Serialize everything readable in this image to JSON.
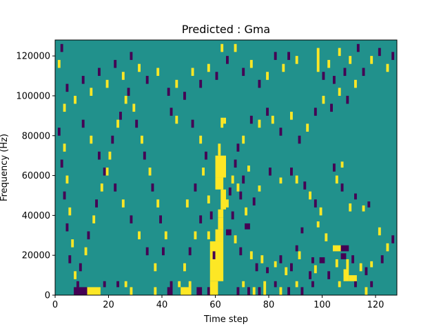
{
  "chart_data": {
    "type": "heatmap",
    "title": "Predicted : Gma",
    "xlabel": "Time step",
    "ylabel": "Frequency (Hz)",
    "xlim": [
      0,
      128
    ],
    "ylim": [
      0,
      128000
    ],
    "grid": false,
    "x_ticks": [
      0,
      20,
      40,
      60,
      80,
      100,
      120
    ],
    "y_ticks": [
      0,
      20000,
      40000,
      60000,
      80000,
      100000,
      120000
    ],
    "x_tick_labels": [
      "0",
      "20",
      "40",
      "60",
      "80",
      "100",
      "120"
    ],
    "y_tick_labels": [
      "0",
      "20000",
      "40000",
      "60000",
      "80000",
      "100000",
      "120000"
    ],
    "background_level": 0,
    "colors": {
      "-1": "#440154",
      "0": "#21918c",
      "1": "#fde725"
    },
    "cells": [
      [
        7,
        0,
        12,
        4000,
        -1
      ],
      [
        12,
        0,
        17,
        4000,
        1
      ],
      [
        8,
        4000,
        9,
        7000,
        -1
      ],
      [
        18,
        4000,
        19,
        7000,
        -1
      ],
      [
        42,
        0,
        43,
        4000,
        -1
      ],
      [
        43,
        0,
        44,
        7000,
        -1
      ],
      [
        47,
        0,
        51,
        4000,
        1
      ],
      [
        50,
        4000,
        51,
        7000,
        1
      ],
      [
        53,
        0,
        55,
        4000,
        -1
      ],
      [
        57,
        0,
        58,
        4000,
        -1
      ],
      [
        58,
        0,
        61,
        7000,
        1
      ],
      [
        46,
        4000,
        47,
        7000,
        1
      ],
      [
        37,
        0,
        38,
        4000,
        1
      ],
      [
        28,
        0,
        29,
        4000,
        1
      ],
      [
        26,
        4000,
        27,
        7000,
        1
      ],
      [
        23,
        4000,
        24,
        7000,
        -1
      ],
      [
        58,
        7000,
        63,
        27000,
        1
      ],
      [
        60,
        27000,
        63,
        33000,
        1
      ],
      [
        61,
        33000,
        63,
        39000,
        1
      ],
      [
        61,
        39000,
        63,
        43000,
        1
      ],
      [
        62,
        43000,
        64,
        53000,
        1
      ],
      [
        60,
        53000,
        63,
        59000,
        1
      ],
      [
        60,
        59000,
        64,
        70000,
        1
      ],
      [
        61,
        70000,
        62,
        76000,
        1
      ],
      [
        62,
        84000,
        63,
        89000,
        1
      ],
      [
        63,
        86000,
        64,
        89000,
        1
      ],
      [
        68,
        0,
        69,
        4000,
        -1
      ],
      [
        70,
        4000,
        71,
        7000,
        1
      ],
      [
        72,
        0,
        73,
        4000,
        -1
      ],
      [
        74,
        0,
        75,
        4000,
        1
      ],
      [
        76,
        0,
        77,
        4000,
        -1
      ],
      [
        78,
        0,
        79,
        7000,
        1
      ],
      [
        82,
        4000,
        83,
        7000,
        -1
      ],
      [
        84,
        0,
        85,
        4000,
        1
      ],
      [
        87,
        0,
        88,
        4000,
        -1
      ],
      [
        90,
        4000,
        91,
        7000,
        1
      ],
      [
        92,
        0,
        93,
        4000,
        -1
      ],
      [
        96,
        4000,
        97,
        7000,
        -1
      ],
      [
        106,
        4000,
        107,
        7000,
        1
      ],
      [
        112,
        4000,
        113,
        7000,
        -1
      ],
      [
        116,
        0,
        117,
        4000,
        1
      ],
      [
        118,
        4000,
        119,
        7000,
        -1
      ],
      [
        108,
        7000,
        110,
        13000,
        1
      ],
      [
        109,
        13000,
        110,
        18000,
        1
      ],
      [
        110,
        7000,
        113,
        10000,
        1
      ],
      [
        107,
        18000,
        109,
        21000,
        -1
      ],
      [
        104,
        22000,
        107,
        25000,
        1
      ],
      [
        107,
        22000,
        110,
        25000,
        -1
      ],
      [
        99,
        16000,
        101,
        19000,
        -1
      ],
      [
        96,
        16000,
        97,
        19000,
        -1
      ],
      [
        90,
        22000,
        91,
        25000,
        -1
      ],
      [
        101,
        27000,
        102,
        31000,
        1
      ],
      [
        92,
        31000,
        93,
        34000,
        -1
      ],
      [
        98,
        34000,
        99,
        37000,
        1
      ],
      [
        71,
        33000,
        73,
        36000,
        -1
      ],
      [
        66,
        38000,
        67,
        42000,
        -1
      ],
      [
        64,
        30000,
        66,
        33000,
        -1
      ],
      [
        67,
        26000,
        68,
        30000,
        1
      ],
      [
        69,
        20000,
        70,
        24000,
        -1
      ],
      [
        73,
        18000,
        74,
        22000,
        1
      ],
      [
        75,
        12000,
        76,
        16000,
        -1
      ],
      [
        77,
        16000,
        78,
        20000,
        1
      ],
      [
        79,
        11000,
        80,
        14000,
        -1
      ],
      [
        82,
        14000,
        83,
        17000,
        1
      ],
      [
        84,
        16000,
        85,
        20000,
        -1
      ],
      [
        86,
        10000,
        87,
        14000,
        1
      ],
      [
        88,
        12000,
        89,
        16000,
        -1
      ],
      [
        91,
        18000,
        92,
        22000,
        1
      ],
      [
        95,
        8000,
        96,
        12000,
        -1
      ],
      [
        97,
        11000,
        98,
        15000,
        1
      ],
      [
        102,
        8000,
        103,
        12000,
        -1
      ],
      [
        105,
        14000,
        106,
        18000,
        1
      ],
      [
        111,
        16000,
        112,
        20000,
        -1
      ],
      [
        114,
        12000,
        115,
        16000,
        1
      ],
      [
        116,
        10000,
        117,
        14000,
        -1
      ],
      [
        118,
        14000,
        119,
        17000,
        1
      ],
      [
        122,
        16000,
        123,
        20000,
        -1
      ],
      [
        124,
        22000,
        125,
        26000,
        1
      ],
      [
        126,
        26000,
        127,
        30000,
        -1
      ],
      [
        121,
        30000,
        122,
        34000,
        1
      ],
      [
        117,
        44000,
        118,
        47000,
        -1
      ],
      [
        115,
        42000,
        116,
        45000,
        1
      ],
      [
        112,
        48000,
        113,
        51000,
        -1
      ],
      [
        110,
        42000,
        111,
        46000,
        1
      ],
      [
        107,
        52000,
        108,
        56000,
        -1
      ],
      [
        105,
        56000,
        106,
        60000,
        1
      ],
      [
        104,
        62000,
        105,
        66000,
        -1
      ],
      [
        107,
        64000,
        108,
        67000,
        1
      ],
      [
        99,
        40000,
        100,
        44000,
        1
      ],
      [
        97,
        44000,
        98,
        48000,
        -1
      ],
      [
        95,
        48000,
        96,
        52000,
        1
      ],
      [
        93,
        53000,
        94,
        57000,
        -1
      ],
      [
        90,
        56000,
        91,
        60000,
        1
      ],
      [
        88,
        60000,
        89,
        64000,
        -1
      ],
      [
        84,
        56000,
        85,
        59000,
        1
      ],
      [
        80,
        60000,
        81,
        64000,
        -1
      ],
      [
        76,
        52000,
        77,
        55000,
        1
      ],
      [
        74,
        45000,
        75,
        49000,
        -1
      ],
      [
        71,
        40000,
        72,
        44000,
        1
      ],
      [
        69,
        48000,
        70,
        52000,
        -1
      ],
      [
        68,
        52000,
        69,
        56000,
        1
      ],
      [
        70,
        56000,
        71,
        60000,
        -1
      ],
      [
        72,
        62000,
        73,
        65000,
        1
      ],
      [
        67,
        64000,
        68,
        68000,
        -1
      ],
      [
        65,
        50000,
        66,
        54000,
        -1
      ],
      [
        64,
        44000,
        65,
        48000,
        1
      ],
      [
        66,
        56000,
        67,
        60000,
        1
      ],
      [
        68,
        72000,
        69,
        76000,
        -1
      ],
      [
        70,
        76000,
        71,
        80000,
        1
      ],
      [
        73,
        86000,
        74,
        90000,
        -1
      ],
      [
        76,
        84000,
        77,
        88000,
        1
      ],
      [
        79,
        90000,
        80,
        94000,
        -1
      ],
      [
        81,
        86000,
        82,
        90000,
        1
      ],
      [
        84,
        80000,
        85,
        84000,
        -1
      ],
      [
        88,
        88000,
        89,
        92000,
        1
      ],
      [
        91,
        76000,
        92,
        80000,
        -1
      ],
      [
        94,
        82000,
        95,
        86000,
        1
      ],
      [
        97,
        90000,
        98,
        94000,
        -1
      ],
      [
        100,
        96000,
        101,
        100000,
        1
      ],
      [
        103,
        92000,
        104,
        96000,
        -1
      ],
      [
        106,
        100000,
        107,
        104000,
        1
      ],
      [
        109,
        96000,
        110,
        100000,
        -1
      ],
      [
        112,
        104000,
        113,
        108000,
        1
      ],
      [
        115,
        110000,
        116,
        114000,
        -1
      ],
      [
        118,
        116000,
        119,
        120000,
        1
      ],
      [
        121,
        120000,
        122,
        124000,
        -1
      ],
      [
        124,
        112000,
        125,
        116000,
        1
      ],
      [
        126,
        118000,
        127,
        122000,
        -1
      ],
      [
        98,
        112000,
        99,
        124000,
        1
      ],
      [
        100,
        108000,
        101,
        112000,
        -1
      ],
      [
        102,
        114000,
        103,
        118000,
        1
      ],
      [
        104,
        106000,
        105,
        110000,
        -1
      ],
      [
        106,
        120000,
        107,
        124000,
        1
      ],
      [
        108,
        110000,
        109,
        114000,
        -1
      ],
      [
        110,
        116000,
        111,
        120000,
        1
      ],
      [
        113,
        122000,
        114,
        126000,
        -1
      ],
      [
        90,
        116000,
        91,
        120000,
        1
      ],
      [
        87,
        118000,
        88,
        122000,
        -1
      ],
      [
        85,
        112000,
        86,
        116000,
        1
      ],
      [
        82,
        118000,
        83,
        122000,
        -1
      ],
      [
        79,
        108000,
        80,
        112000,
        1
      ],
      [
        76,
        104000,
        77,
        108000,
        -1
      ],
      [
        73,
        114000,
        74,
        118000,
        1
      ],
      [
        70,
        110000,
        71,
        114000,
        -1
      ],
      [
        67,
        122000,
        68,
        126000,
        1
      ],
      [
        64,
        116000,
        65,
        120000,
        -1
      ],
      [
        62,
        122000,
        63,
        126000,
        1
      ],
      [
        60,
        108000,
        61,
        112000,
        -1
      ],
      [
        57,
        112000,
        58,
        116000,
        1
      ],
      [
        54,
        104000,
        55,
        108000,
        -1
      ],
      [
        51,
        110000,
        52,
        114000,
        1
      ],
      [
        48,
        98000,
        49,
        102000,
        -1
      ],
      [
        45,
        104000,
        46,
        108000,
        1
      ],
      [
        42,
        100000,
        43,
        104000,
        -1
      ],
      [
        38,
        110000,
        39,
        114000,
        1
      ],
      [
        34,
        106000,
        35,
        110000,
        -1
      ],
      [
        31,
        112000,
        32,
        116000,
        1
      ],
      [
        28,
        118000,
        29,
        122000,
        -1
      ],
      [
        25,
        108000,
        26,
        112000,
        1
      ],
      [
        22,
        114000,
        23,
        118000,
        -1
      ],
      [
        19,
        104000,
        20,
        108000,
        1
      ],
      [
        16,
        110000,
        17,
        114000,
        -1
      ],
      [
        13,
        100000,
        14,
        104000,
        1
      ],
      [
        10,
        106000,
        11,
        110000,
        -1
      ],
      [
        7,
        96000,
        8,
        100000,
        1
      ],
      [
        4,
        102000,
        5,
        106000,
        -1
      ],
      [
        1,
        114000,
        2,
        118000,
        1
      ],
      [
        2,
        122000,
        3,
        126000,
        -1
      ],
      [
        3,
        92000,
        4,
        96000,
        1
      ],
      [
        1,
        80000,
        2,
        84000,
        -1
      ],
      [
        3,
        72000,
        4,
        76000,
        1
      ],
      [
        2,
        64000,
        3,
        68000,
        -1
      ],
      [
        4,
        56000,
        5,
        60000,
        1
      ],
      [
        3,
        48000,
        4,
        52000,
        -1
      ],
      [
        5,
        40000,
        6,
        44000,
        1
      ],
      [
        4,
        32000,
        5,
        36000,
        -1
      ],
      [
        6,
        24000,
        7,
        28000,
        1
      ],
      [
        5,
        16000,
        6,
        20000,
        -1
      ],
      [
        7,
        8000,
        8,
        12000,
        1
      ],
      [
        9,
        12000,
        10,
        16000,
        -1
      ],
      [
        11,
        20000,
        12,
        24000,
        1
      ],
      [
        12,
        28000,
        13,
        32000,
        -1
      ],
      [
        14,
        36000,
        15,
        40000,
        1
      ],
      [
        15,
        44000,
        16,
        48000,
        -1
      ],
      [
        17,
        52000,
        18,
        56000,
        1
      ],
      [
        18,
        60000,
        19,
        64000,
        -1
      ],
      [
        20,
        68000,
        21,
        72000,
        1
      ],
      [
        21,
        76000,
        22,
        80000,
        -1
      ],
      [
        23,
        84000,
        24,
        88000,
        1
      ],
      [
        24,
        88000,
        25,
        92000,
        -1
      ],
      [
        26,
        96000,
        27,
        100000,
        1
      ],
      [
        27,
        100000,
        28,
        104000,
        -1
      ],
      [
        29,
        92000,
        30,
        96000,
        1
      ],
      [
        30,
        84000,
        31,
        88000,
        -1
      ],
      [
        32,
        76000,
        33,
        80000,
        1
      ],
      [
        33,
        68000,
        34,
        72000,
        -1
      ],
      [
        35,
        60000,
        36,
        64000,
        1
      ],
      [
        36,
        52000,
        37,
        56000,
        -1
      ],
      [
        38,
        44000,
        39,
        48000,
        1
      ],
      [
        39,
        36000,
        40,
        40000,
        -1
      ],
      [
        41,
        28000,
        42,
        32000,
        1
      ],
      [
        40,
        20000,
        41,
        24000,
        -1
      ],
      [
        37,
        12000,
        38,
        16000,
        1
      ],
      [
        34,
        20000,
        35,
        24000,
        -1
      ],
      [
        31,
        28000,
        32,
        32000,
        1
      ],
      [
        28,
        36000,
        29,
        40000,
        -1
      ],
      [
        25,
        44000,
        26,
        48000,
        1
      ],
      [
        22,
        52000,
        23,
        56000,
        -1
      ],
      [
        19,
        60000,
        20,
        64000,
        1
      ],
      [
        16,
        68000,
        17,
        72000,
        -1
      ],
      [
        13,
        76000,
        14,
        80000,
        1
      ],
      [
        10,
        84000,
        11,
        88000,
        -1
      ],
      [
        48,
        12000,
        49,
        16000,
        1
      ],
      [
        50,
        20000,
        51,
        24000,
        -1
      ],
      [
        52,
        28000,
        53,
        32000,
        1
      ],
      [
        54,
        36000,
        55,
        40000,
        -1
      ],
      [
        49,
        44000,
        50,
        48000,
        1
      ],
      [
        52,
        52000,
        53,
        56000,
        -1
      ],
      [
        55,
        60000,
        56,
        64000,
        1
      ],
      [
        56,
        68000,
        57,
        72000,
        -1
      ],
      [
        54,
        76000,
        55,
        80000,
        1
      ],
      [
        51,
        84000,
        52,
        88000,
        -1
      ],
      [
        45,
        86000,
        46,
        90000,
        1
      ],
      [
        43,
        90000,
        44,
        94000,
        -1
      ],
      [
        59,
        18000,
        60,
        22000,
        -1
      ],
      [
        57,
        28000,
        58,
        32000,
        1
      ],
      [
        58,
        38000,
        59,
        42000,
        -1
      ],
      [
        57,
        46000,
        58,
        50000,
        1
      ]
    ]
  }
}
